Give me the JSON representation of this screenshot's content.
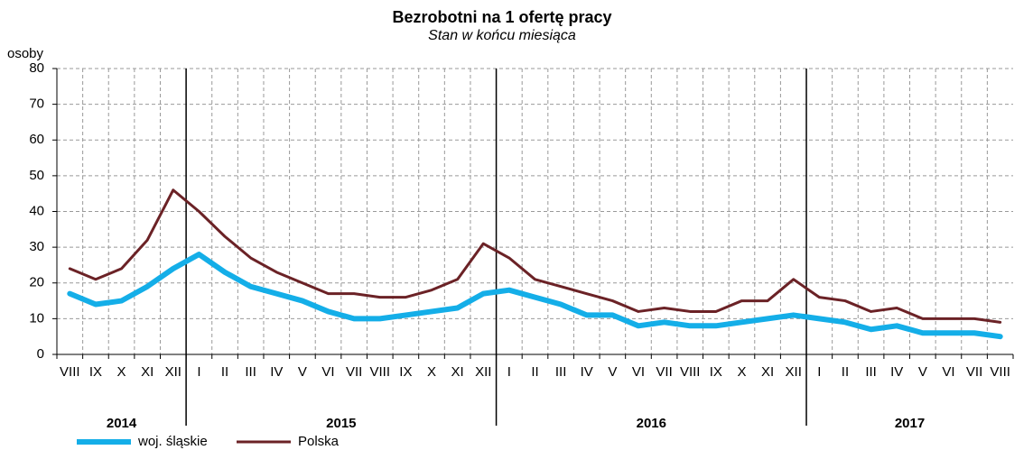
{
  "chart_data": {
    "type": "line",
    "title": "Bezrobotni na 1 ofertę pracy",
    "subtitle": "Stan w końcu miesiąca",
    "y_axis_label": "osoby",
    "categories": [
      "VIII",
      "IX",
      "X",
      "XI",
      "XII",
      "I",
      "II",
      "III",
      "IV",
      "V",
      "VI",
      "VII",
      "VIII",
      "IX",
      "X",
      "XI",
      "XII",
      "I",
      "II",
      "III",
      "IV",
      "V",
      "VI",
      "VII",
      "VIII",
      "IX",
      "X",
      "XI",
      "XII",
      "I",
      "II",
      "III",
      "IV",
      "V",
      "VI",
      "VII",
      "VIII"
    ],
    "year_labels": [
      "2014",
      "2015",
      "2016",
      "2017"
    ],
    "series": [
      {
        "name": "woj. śląskie",
        "color": "#14aee8",
        "values": [
          17,
          14,
          15,
          19,
          24,
          28,
          23,
          19,
          17,
          15,
          12,
          10,
          10,
          11,
          12,
          13,
          17,
          18,
          16,
          14,
          11,
          11,
          8,
          9,
          8,
          8,
          9,
          10,
          11,
          10,
          9,
          7,
          8,
          6,
          6,
          6,
          5
        ]
      },
      {
        "name": "Polska",
        "color": "#6b2226",
        "values": [
          24,
          21,
          24,
          32,
          46,
          40,
          33,
          27,
          23,
          20,
          17,
          17,
          16,
          16,
          18,
          21,
          31,
          27,
          21,
          19,
          17,
          15,
          12,
          13,
          12,
          12,
          15,
          15,
          21,
          16,
          15,
          12,
          13,
          10,
          10,
          10,
          9
        ]
      }
    ],
    "ylim": [
      0,
      80
    ],
    "yticks": [
      0,
      10,
      20,
      30,
      40,
      50,
      60,
      70,
      80
    ],
    "grid": true
  }
}
